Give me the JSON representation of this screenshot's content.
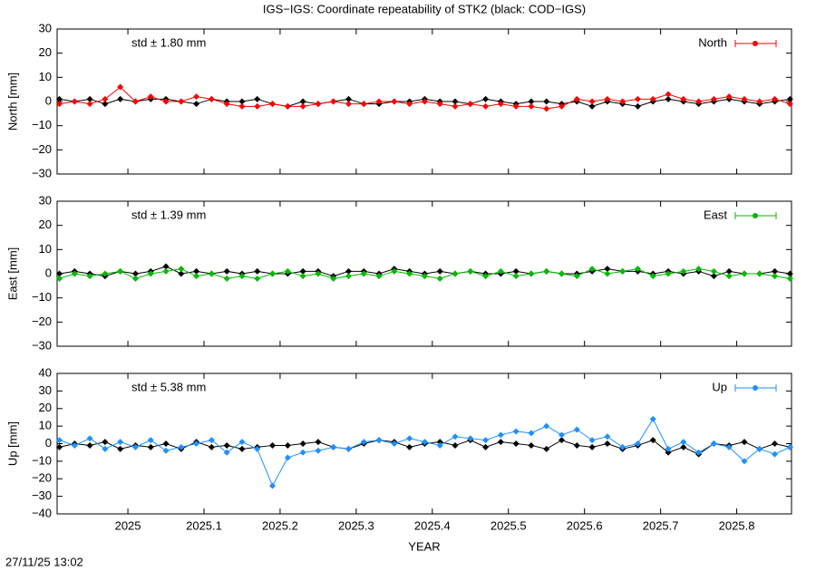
{
  "title": "IGS−IGS: Coordinate repeatability of STK2 (black: COD−IGS)",
  "timestamp": "27/11/25 13:02",
  "chart_data": [
    {
      "type": "line",
      "ylabel": "North [mm]",
      "annotation": "std ± 1.80 mm",
      "legend": "top-right",
      "xlim": [
        2024.907,
        2025.872
      ],
      "xticks": [
        2025,
        2025.1,
        2025.2,
        2025.3,
        2025.4,
        2025.5,
        2025.6,
        2025.7,
        2025.8
      ],
      "ylim": [
        -30,
        30
      ],
      "yticks": [
        {
          "value": -30,
          "label": "−30"
        },
        {
          "value": -20,
          "label": "−20"
        },
        {
          "value": -10,
          "label": "−10"
        },
        0,
        10,
        20,
        30
      ],
      "x": [
        2024.91,
        2024.93,
        2024.95,
        2024.97,
        2024.99,
        2025.01,
        2025.03,
        2025.05,
        2025.07,
        2025.09,
        2025.11,
        2025.13,
        2025.15,
        2025.17,
        2025.19,
        2025.21,
        2025.23,
        2025.25,
        2025.27,
        2025.29,
        2025.31,
        2025.33,
        2025.35,
        2025.37,
        2025.39,
        2025.41,
        2025.43,
        2025.45,
        2025.47,
        2025.49,
        2025.51,
        2025.53,
        2025.55,
        2025.57,
        2025.59,
        2025.61,
        2025.63,
        2025.65,
        2025.67,
        2025.69,
        2025.71,
        2025.73,
        2025.75,
        2025.77,
        2025.79,
        2025.81,
        2025.83,
        2025.85,
        2025.87
      ],
      "series": [
        {
          "color": "#000000",
          "values": [
            1,
            0,
            1,
            -1,
            1,
            0,
            1,
            1,
            0,
            -1,
            1,
            0,
            0,
            1,
            -1,
            -2,
            0,
            -1,
            0,
            1,
            -1,
            -1,
            0,
            0,
            1,
            0,
            0,
            -1,
            1,
            0,
            -1,
            0,
            0,
            -1,
            0,
            -2,
            0,
            -1,
            -2,
            0,
            1,
            0,
            -1,
            0,
            1,
            0,
            -1,
            0,
            1
          ]
        },
        {
          "name": "North",
          "color": "#ff0000",
          "values": [
            -1,
            0,
            -1,
            1,
            6,
            0,
            2,
            0,
            0,
            2,
            1,
            -1,
            -2,
            -2,
            -1,
            -2,
            -2,
            -1,
            0,
            -1,
            -1,
            0,
            0,
            -1,
            0,
            -1,
            -2,
            -1,
            -2,
            -1,
            -2,
            -2,
            -3,
            -2,
            1,
            0,
            1,
            0,
            1,
            1,
            3,
            1,
            0,
            1,
            2,
            1,
            0,
            1,
            -1
          ]
        }
      ]
    },
    {
      "type": "line",
      "ylabel": "East [mm]",
      "annotation": "std ± 1.39 mm",
      "legend": "top-right",
      "xlim": [
        2024.907,
        2025.872
      ],
      "xticks": [
        2025,
        2025.1,
        2025.2,
        2025.3,
        2025.4,
        2025.5,
        2025.6,
        2025.7,
        2025.8
      ],
      "ylim": [
        -30,
        30
      ],
      "yticks": [
        {
          "value": -30,
          "label": "−30"
        },
        {
          "value": -20,
          "label": "−20"
        },
        {
          "value": -10,
          "label": "−10"
        },
        0,
        10,
        20,
        30
      ],
      "x": [
        2024.91,
        2024.93,
        2024.95,
        2024.97,
        2024.99,
        2025.01,
        2025.03,
        2025.05,
        2025.07,
        2025.09,
        2025.11,
        2025.13,
        2025.15,
        2025.17,
        2025.19,
        2025.21,
        2025.23,
        2025.25,
        2025.27,
        2025.29,
        2025.31,
        2025.33,
        2025.35,
        2025.37,
        2025.39,
        2025.41,
        2025.43,
        2025.45,
        2025.47,
        2025.49,
        2025.51,
        2025.53,
        2025.55,
        2025.57,
        2025.59,
        2025.61,
        2025.63,
        2025.65,
        2025.67,
        2025.69,
        2025.71,
        2025.73,
        2025.75,
        2025.77,
        2025.79,
        2025.81,
        2025.83,
        2025.85,
        2025.87
      ],
      "series": [
        {
          "color": "#000000",
          "values": [
            0,
            1,
            0,
            -1,
            1,
            0,
            1,
            3,
            0,
            1,
            0,
            1,
            0,
            1,
            0,
            0,
            1,
            1,
            -1,
            1,
            1,
            0,
            2,
            1,
            0,
            1,
            0,
            1,
            0,
            0,
            1,
            0,
            1,
            0,
            0,
            1,
            2,
            1,
            1,
            0,
            1,
            0,
            1,
            -1,
            1,
            0,
            0,
            1,
            0
          ]
        },
        {
          "name": "East",
          "color": "#00bb00",
          "values": [
            -2,
            0,
            -1,
            0,
            1,
            -2,
            0,
            1,
            2,
            -1,
            0,
            -2,
            -1,
            -2,
            0,
            1,
            -1,
            0,
            -2,
            -1,
            0,
            -1,
            1,
            0,
            -1,
            -2,
            0,
            1,
            -1,
            1,
            -1,
            0,
            1,
            0,
            -1,
            2,
            0,
            1,
            2,
            -1,
            0,
            1,
            2,
            1,
            -1,
            0,
            0,
            -1,
            -2
          ]
        }
      ]
    },
    {
      "type": "line",
      "ylabel": "Up [mm]",
      "xlabel": "YEAR",
      "annotation": "std ± 5.38 mm",
      "legend": "top-right",
      "xlim": [
        2024.907,
        2025.872
      ],
      "xticks": [
        2025,
        2025.1,
        2025.2,
        2025.3,
        2025.4,
        2025.5,
        2025.6,
        2025.7,
        2025.8
      ],
      "ylim": [
        -40,
        40
      ],
      "yticks": [
        {
          "value": -40,
          "label": "−40"
        },
        {
          "value": -30,
          "label": "−30"
        },
        {
          "value": -20,
          "label": "−20"
        },
        {
          "value": -10,
          "label": "−10"
        },
        0,
        10,
        20,
        30,
        40
      ],
      "x": [
        2024.91,
        2024.93,
        2024.95,
        2024.97,
        2024.99,
        2025.01,
        2025.03,
        2025.05,
        2025.07,
        2025.09,
        2025.11,
        2025.13,
        2025.15,
        2025.17,
        2025.19,
        2025.21,
        2025.23,
        2025.25,
        2025.27,
        2025.29,
        2025.31,
        2025.33,
        2025.35,
        2025.37,
        2025.39,
        2025.41,
        2025.43,
        2025.45,
        2025.47,
        2025.49,
        2025.51,
        2025.53,
        2025.55,
        2025.57,
        2025.59,
        2025.61,
        2025.63,
        2025.65,
        2025.67,
        2025.69,
        2025.71,
        2025.73,
        2025.75,
        2025.77,
        2025.79,
        2025.81,
        2025.83,
        2025.85,
        2025.87
      ],
      "series": [
        {
          "color": "#000000",
          "values": [
            -2,
            0,
            -1,
            1,
            -3,
            -1,
            -2,
            0,
            -3,
            1,
            -2,
            -1,
            -3,
            -2,
            -1,
            -1,
            0,
            1,
            -2,
            -3,
            0,
            2,
            1,
            -2,
            0,
            1,
            -1,
            2,
            -2,
            1,
            0,
            -1,
            -3,
            2,
            -1,
            -2,
            0,
            -3,
            -1,
            2,
            -5,
            -2,
            -6,
            0,
            -1,
            1,
            -3,
            0,
            -2
          ]
        },
        {
          "name": "Up",
          "color": "#1e90ff",
          "values": [
            2,
            -1,
            3,
            -3,
            1,
            -2,
            2,
            -4,
            -2,
            0,
            2,
            -5,
            1,
            -3,
            -24,
            -8,
            -5,
            -4,
            -2,
            -3,
            1,
            2,
            0,
            3,
            1,
            -1,
            4,
            3,
            2,
            5,
            7,
            6,
            10,
            5,
            8,
            2,
            4,
            -2,
            0,
            14,
            -3,
            1,
            -5,
            0,
            -2,
            -10,
            -3,
            -6,
            -2
          ]
        }
      ]
    }
  ]
}
